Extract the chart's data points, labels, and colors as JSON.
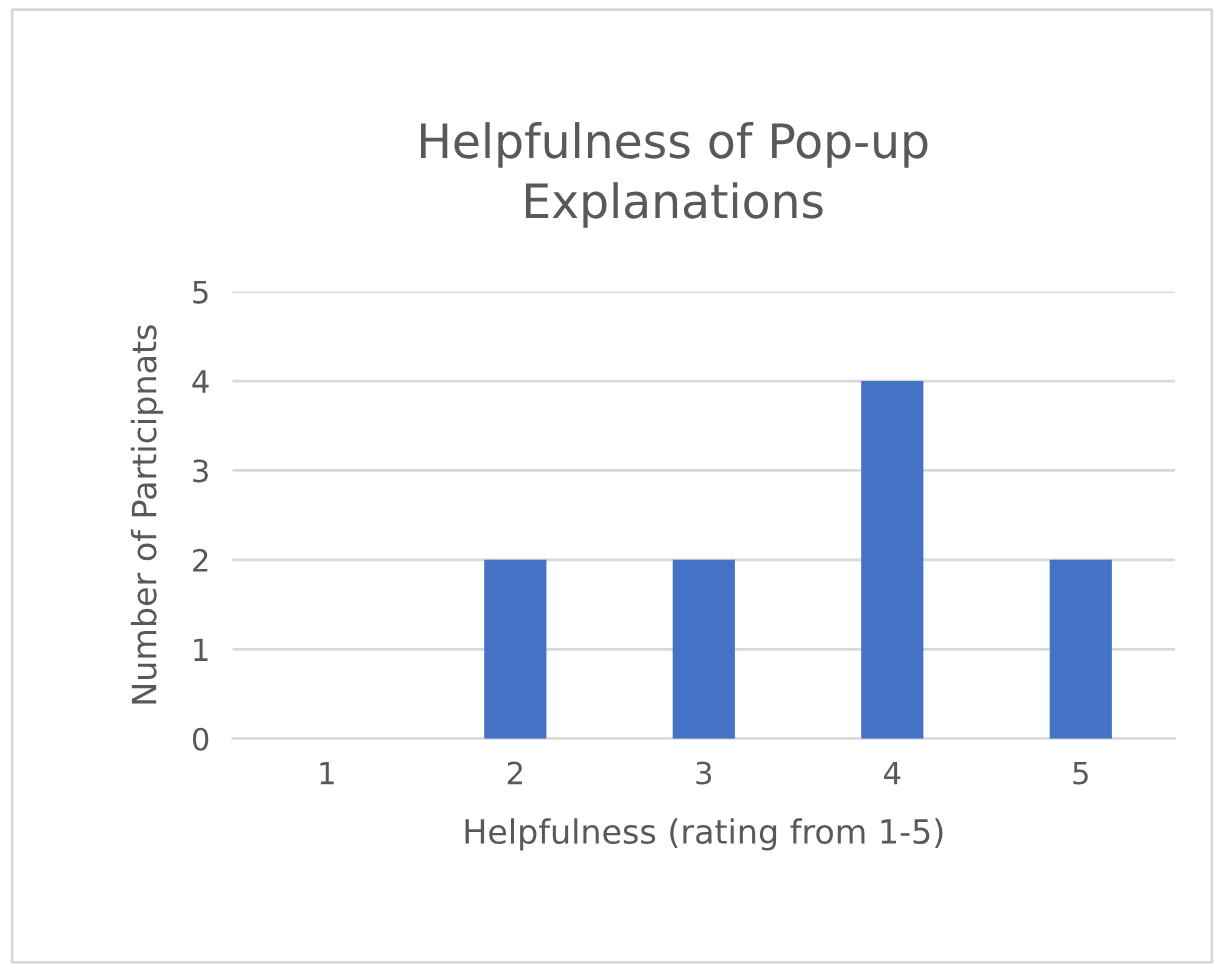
{
  "chart_data": {
    "type": "bar",
    "title": "Helpfulness of Pop-up\nExplanations",
    "xlabel": "Helpfulness (rating from 1-5)",
    "ylabel": "Number of Participnats",
    "categories": [
      "1",
      "2",
      "3",
      "4",
      "5"
    ],
    "values": [
      0,
      2,
      2,
      4,
      2
    ],
    "color": "#4472c4",
    "ylim": [
      0,
      5
    ],
    "yticks": [
      0,
      1,
      2,
      3,
      4,
      5
    ],
    "grid": "y",
    "legend": false
  }
}
